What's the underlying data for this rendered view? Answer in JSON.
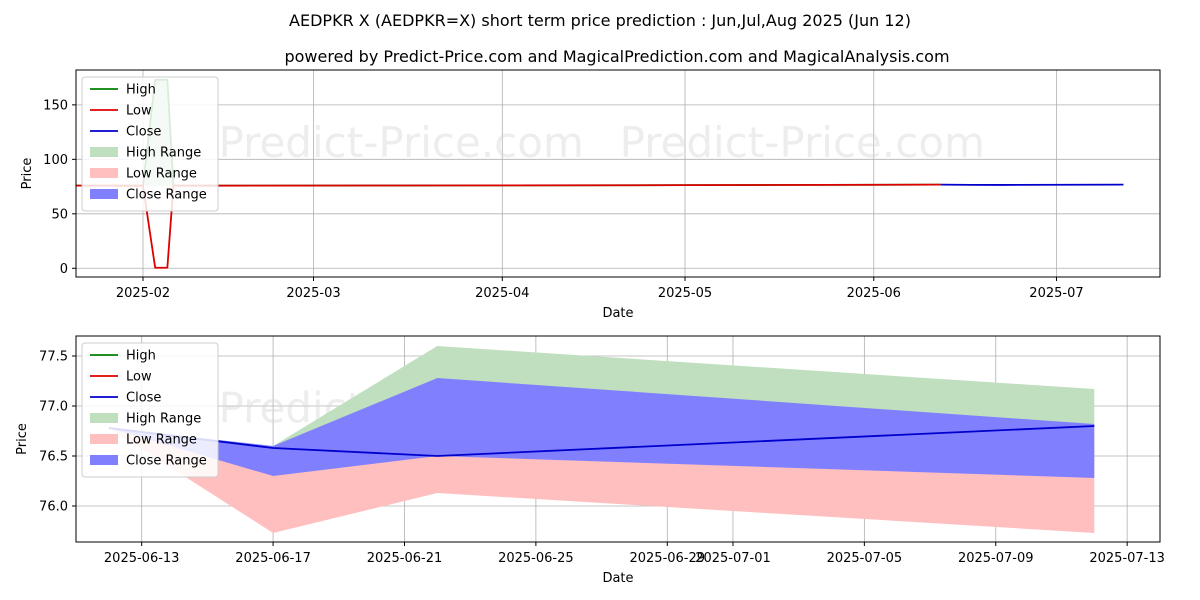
{
  "title": "AEDPKR X (AEDPKR=X) short term price prediction : Jun,Jul,Aug 2025 (Jun 12)",
  "subtitle": "powered by Predict-Price.com and MagicalPrediction.com and MagicalAnalysis.com",
  "watermark": "Predict-Price.com",
  "colors": {
    "high": "#008000",
    "low": "#dd0000",
    "close": "#0000cc",
    "high_range": "#bfdfbf",
    "low_range": "#ffbfbf",
    "close_range": "#8080ff",
    "grid": "#b0b0b0"
  },
  "chart_data": [
    {
      "type": "line",
      "panel": "top",
      "xlabel": "Date",
      "ylabel": "Price",
      "xlim": [
        "2025-01-21",
        "2025-07-18"
      ],
      "ylim": [
        -8,
        182
      ],
      "xticks": [
        "2025-02",
        "2025-03",
        "2025-04",
        "2025-05",
        "2025-06",
        "2025-07"
      ],
      "yticks": [
        0,
        50,
        100,
        150
      ],
      "grid": true,
      "legend": {
        "position": "top-left",
        "entries": [
          "High",
          "Low",
          "Close",
          "High Range",
          "Low Range",
          "Close Range"
        ]
      },
      "series": [
        {
          "name": "High",
          "x": [
            "2025-01-21",
            "2025-02-01",
            "2025-02-03",
            "2025-02-05",
            "2025-02-06",
            "2025-03-15",
            "2025-05-01",
            "2025-06-12"
          ],
          "values": [
            75.9,
            75.8,
            173,
            173,
            75.8,
            76.0,
            76.3,
            76.8
          ]
        },
        {
          "name": "Low",
          "x": [
            "2025-01-21",
            "2025-02-01",
            "2025-02-03",
            "2025-02-05",
            "2025-02-06",
            "2025-03-15",
            "2025-05-01",
            "2025-06-12"
          ],
          "values": [
            75.9,
            75.8,
            0.5,
            0.5,
            75.8,
            76.0,
            76.3,
            76.8
          ]
        },
        {
          "name": "Close",
          "x": [
            "2025-06-12",
            "2025-06-17",
            "2025-06-22",
            "2025-07-12"
          ],
          "values": [
            76.78,
            76.58,
            76.5,
            76.8
          ]
        }
      ],
      "ranges": [
        {
          "name": "High Range",
          "x": [
            "2025-02-01",
            "2025-02-03",
            "2025-02-05",
            "2025-02-06"
          ],
          "lower": [
            75.8,
            75.8,
            75.8,
            75.8
          ],
          "upper": [
            75.8,
            173,
            173,
            75.8
          ]
        }
      ]
    },
    {
      "type": "line",
      "panel": "bottom",
      "xlabel": "Date",
      "ylabel": "Price",
      "xlim": [
        "2025-06-11",
        "2025-07-14"
      ],
      "ylim": [
        75.64,
        77.7
      ],
      "xticks": [
        "2025-06-13",
        "2025-06-17",
        "2025-06-21",
        "2025-06-25",
        "2025-06-29",
        "2025-07-01",
        "2025-07-05",
        "2025-07-09",
        "2025-07-13"
      ],
      "yticks": [
        76.0,
        76.5,
        77.0,
        77.5
      ],
      "grid": true,
      "legend": {
        "position": "top-left",
        "entries": [
          "High",
          "Low",
          "Close",
          "High Range",
          "Low Range",
          "Close Range"
        ]
      },
      "series": [
        {
          "name": "Close",
          "x": [
            "2025-06-12",
            "2025-06-17",
            "2025-06-22",
            "2025-07-12"
          ],
          "values": [
            76.78,
            76.58,
            76.5,
            76.8
          ]
        }
      ],
      "ranges": [
        {
          "name": "High Range",
          "x": [
            "2025-06-12",
            "2025-06-17",
            "2025-06-22",
            "2025-07-12"
          ],
          "lower": [
            76.78,
            76.58,
            76.5,
            76.8
          ],
          "upper": [
            76.78,
            76.6,
            77.6,
            77.17
          ]
        },
        {
          "name": "Low Range",
          "x": [
            "2025-06-12",
            "2025-06-17",
            "2025-06-22",
            "2025-07-12"
          ],
          "lower": [
            76.78,
            75.73,
            76.13,
            75.73
          ],
          "upper": [
            76.78,
            76.58,
            76.5,
            76.8
          ]
        },
        {
          "name": "Close Range",
          "x": [
            "2025-06-12",
            "2025-06-17",
            "2025-06-22",
            "2025-07-12"
          ],
          "lower": [
            76.78,
            76.3,
            76.5,
            76.28
          ],
          "upper": [
            76.78,
            76.6,
            77.28,
            76.82
          ]
        }
      ]
    }
  ]
}
